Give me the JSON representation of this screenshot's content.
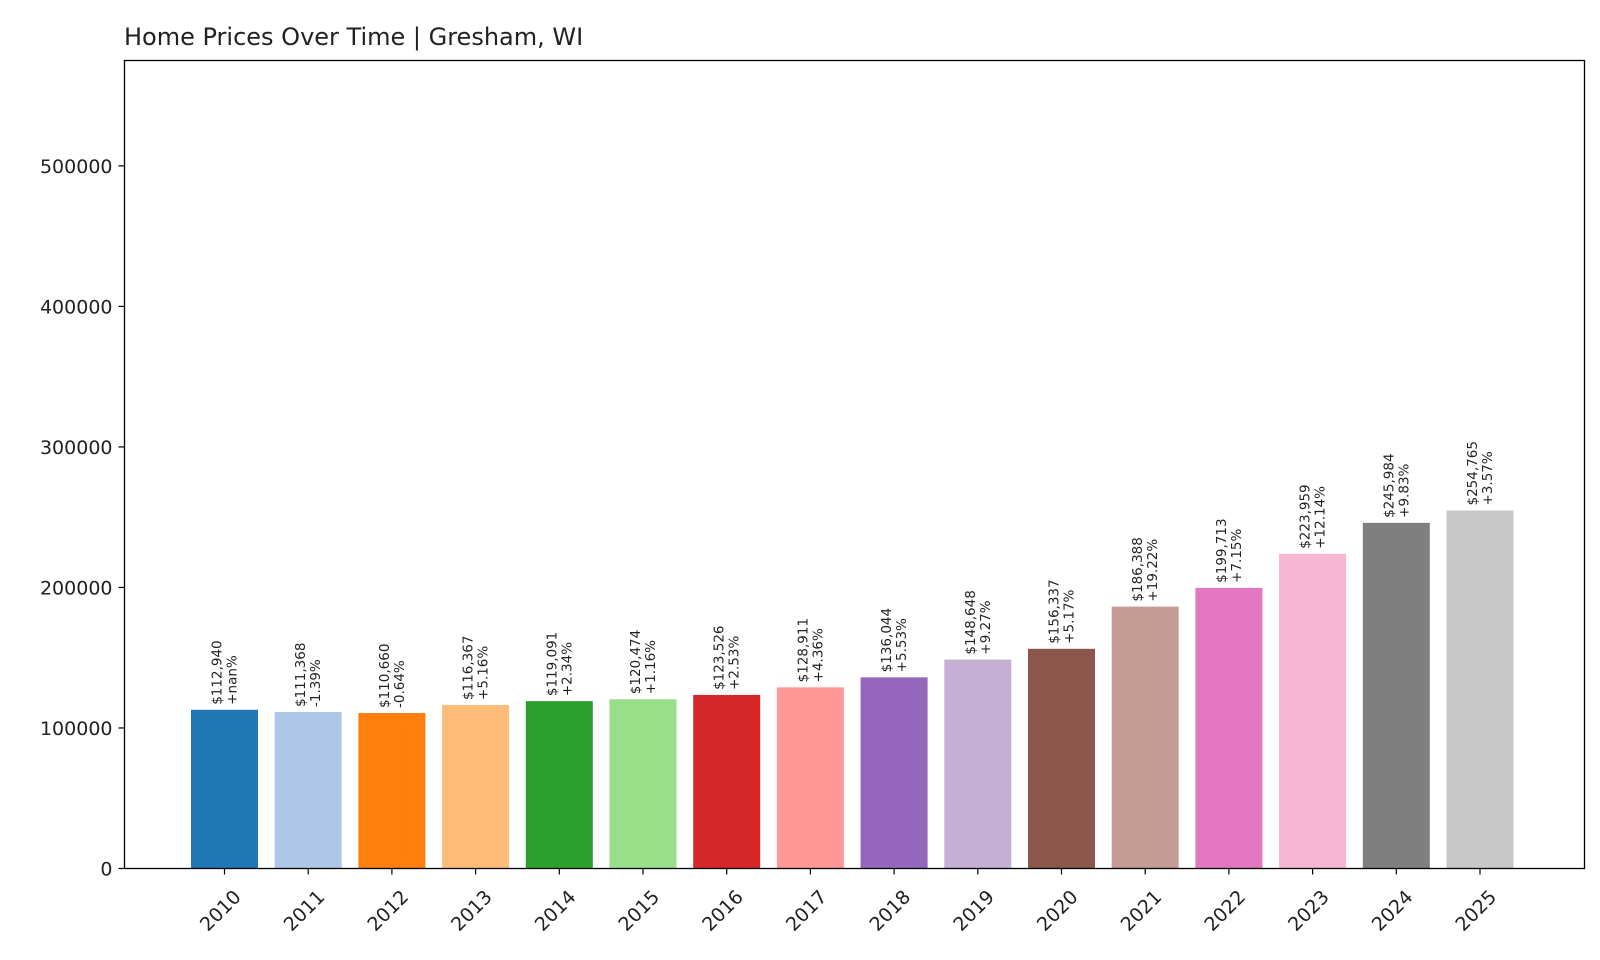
{
  "chart_data": {
    "type": "bar",
    "title": "Home Prices Over Time | Gresham, WI",
    "xlabel": "",
    "ylabel": "",
    "ylim": [
      0,
      575000
    ],
    "yticks": [
      0,
      100000,
      200000,
      300000,
      400000,
      500000
    ],
    "ytick_labels": [
      "0",
      "100000",
      "200000",
      "300000",
      "400000",
      "500000"
    ],
    "grid": false,
    "legend": "none",
    "categories": [
      "2010",
      "2011",
      "2012",
      "2013",
      "2014",
      "2015",
      "2016",
      "2017",
      "2018",
      "2019",
      "2020",
      "2021",
      "2022",
      "2023",
      "2024",
      "2025"
    ],
    "values": [
      112940,
      111368,
      110660,
      116367,
      119091,
      120474,
      123526,
      128911,
      136044,
      148648,
      156337,
      186388,
      199713,
      223959,
      245984,
      254765
    ],
    "value_labels": [
      "$112,940",
      "$111,368",
      "$110,660",
      "$116,367",
      "$119,091",
      "$120,474",
      "$123,526",
      "$128,911",
      "$136,044",
      "$148,648",
      "$156,337",
      "$186,388",
      "$199,713",
      "$223,959",
      "$245,984",
      "$254,765"
    ],
    "change_labels": [
      "+nan%",
      "-1.39%",
      "-0.64%",
      "+5.16%",
      "+2.34%",
      "+1.16%",
      "+2.53%",
      "+4.36%",
      "+5.53%",
      "+9.27%",
      "+5.17%",
      "+19.22%",
      "+7.15%",
      "+12.14%",
      "+9.83%",
      "+3.57%"
    ],
    "colors": [
      "#1f77b4",
      "#aec7e8",
      "#ff7f0e",
      "#ffbb78",
      "#2ca02c",
      "#98df8a",
      "#d62728",
      "#ff9896",
      "#9467bd",
      "#c5b0d5",
      "#8c564b",
      "#c49c94",
      "#e377c2",
      "#f7b6d2",
      "#7f7f7f",
      "#c7c7c7"
    ]
  }
}
